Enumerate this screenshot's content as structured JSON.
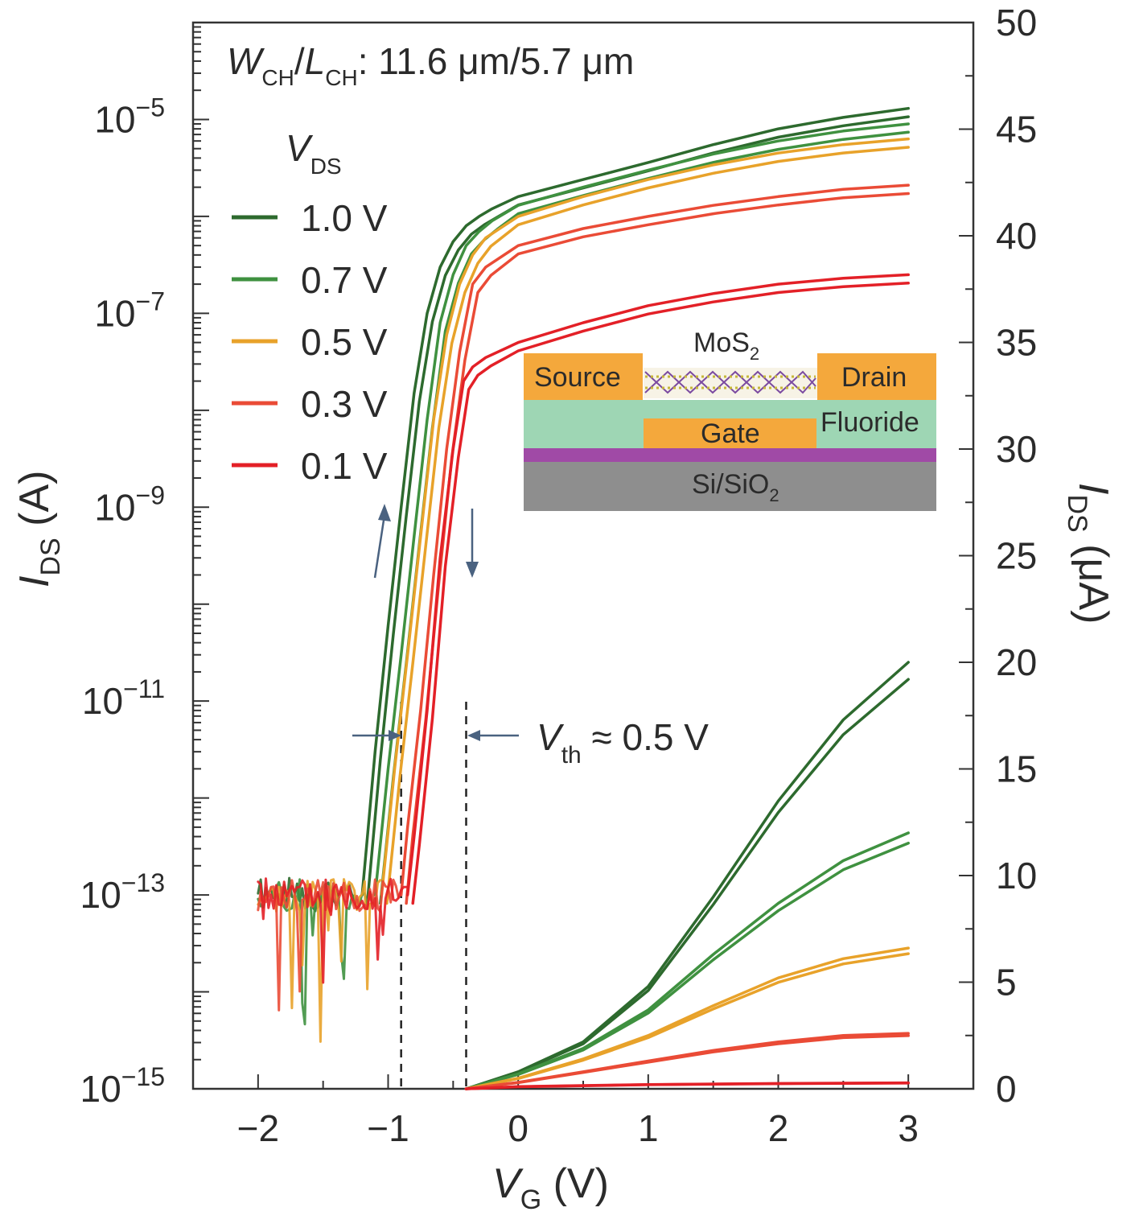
{
  "chart_data": {
    "type": "line",
    "annotation_top": {
      "w": "W",
      "w_sub": "CH",
      "slash": "/",
      "l": "L",
      "l_sub": "CH",
      "rest": ": 11.6 μm/5.7 μm"
    },
    "legend": {
      "title": "V",
      "title_sub": "DS",
      "position": "upper-left"
    },
    "x_axis": {
      "label": "V",
      "label_sub": "G",
      "label_unit": " (V)",
      "range": [
        -2.5,
        3.5
      ],
      "ticks": [
        -2,
        -1,
        0,
        1,
        2,
        3
      ],
      "tick_labels": [
        "−2",
        "−1",
        "0",
        "1",
        "2",
        "3"
      ]
    },
    "y_left": {
      "label": "I",
      "label_sub": "DS",
      "label_unit": " (A)",
      "scale": "log",
      "range": [
        1e-15,
        0.0001
      ],
      "tick_base": "10",
      "tick_exponents": [
        "−15",
        "−13",
        "−11",
        "−9",
        "−7",
        "−5"
      ],
      "tick_values": [
        -15,
        -13,
        -11,
        -9,
        -7,
        -5
      ]
    },
    "y_right": {
      "label": "I",
      "label_sub": "DS",
      "label_unit": " (μA)",
      "scale": "linear",
      "range": [
        0,
        50
      ],
      "ticks": [
        0,
        5,
        10,
        15,
        20,
        25,
        30,
        35,
        40,
        45,
        50
      ],
      "tick_labels": [
        "0",
        "5",
        "10",
        "15",
        "20",
        "25",
        "30",
        "35",
        "40",
        "45",
        "50"
      ]
    },
    "series": [
      {
        "name": "1.0 V",
        "color": "#2d6a2e",
        "log_x": [
          -1.2,
          -1.1,
          -1.0,
          -0.9,
          -0.8,
          -0.7,
          -0.6,
          -0.5,
          -0.4,
          -0.3,
          -0.2,
          0.0,
          0.5,
          1.0,
          1.5,
          2.0,
          2.5,
          3.0
        ],
        "log_y": [
          1e-13,
          3e-12,
          6e-11,
          1e-09,
          1.5e-08,
          1e-07,
          3e-07,
          5.5e-07,
          8e-07,
          1e-06,
          1.2e-06,
          1.6e-06,
          2.4e-06,
          3.6e-06,
          5.5e-06,
          8e-06,
          1.05e-05,
          1.3e-05
        ],
        "lin_x": [
          -0.4,
          0.0,
          0.5,
          1.0,
          1.5,
          2.0,
          2.5,
          3.0
        ],
        "lin_y": [
          0,
          0.8,
          2.2,
          4.8,
          9.0,
          13.5,
          17.3,
          20.0
        ]
      },
      {
        "name": "0.7 V",
        "color": "#3f9140",
        "log_x": [
          -1.1,
          -1.0,
          -0.9,
          -0.8,
          -0.7,
          -0.6,
          -0.5,
          -0.4,
          -0.3,
          -0.2,
          0.0,
          0.5,
          1.0,
          1.5,
          2.0,
          2.5,
          3.0
        ],
        "log_y": [
          1e-13,
          2e-12,
          3e-11,
          5e-10,
          8e-09,
          8e-08,
          2.5e-07,
          5e-07,
          7e-07,
          9e-07,
          1.3e-06,
          2e-06,
          3e-06,
          4.4e-06,
          6e-06,
          7.6e-06,
          9e-06
        ],
        "lin_x": [
          -0.4,
          0.0,
          0.5,
          1.0,
          1.5,
          2.0,
          2.5,
          3.0
        ],
        "lin_y": [
          0,
          0.7,
          1.9,
          3.7,
          6.3,
          8.7,
          10.7,
          12.0
        ]
      },
      {
        "name": "0.5 V",
        "color": "#e8a22a",
        "log_x": [
          -1.05,
          -0.95,
          -0.85,
          -0.75,
          -0.65,
          -0.55,
          -0.45,
          -0.35,
          -0.25,
          0.0,
          0.5,
          1.0,
          1.5,
          2.0,
          2.5,
          3.0
        ],
        "log_y": [
          1e-13,
          2e-12,
          3e-11,
          5e-10,
          8e-09,
          6e-08,
          2e-07,
          4e-07,
          6e-07,
          1e-06,
          1.6e-06,
          2.4e-06,
          3.4e-06,
          4.5e-06,
          5.5e-06,
          6.3e-06
        ],
        "lin_x": [
          -0.4,
          0.0,
          0.5,
          1.0,
          1.5,
          2.0,
          2.5,
          3.0
        ],
        "lin_y": [
          0,
          0.5,
          1.4,
          2.5,
          3.9,
          5.2,
          6.1,
          6.6
        ]
      },
      {
        "name": "0.3 V",
        "color": "#ea4b36",
        "log_x": [
          -0.9,
          -0.85,
          -0.75,
          -0.65,
          -0.55,
          -0.45,
          -0.35,
          -0.25,
          0.0,
          0.5,
          1.0,
          1.5,
          2.0,
          2.5,
          3.0
        ],
        "log_y": [
          1e-13,
          5e-13,
          8e-12,
          2e-10,
          4e-09,
          4e-08,
          2e-07,
          3e-07,
          5e-07,
          7.5e-07,
          1e-06,
          1.3e-06,
          1.6e-06,
          1.9e-06,
          2.1e-06
        ],
        "lin_x": [
          -0.4,
          0.0,
          0.5,
          1.0,
          1.5,
          2.0,
          2.5,
          3.0
        ],
        "lin_y": [
          0,
          0.3,
          0.8,
          1.3,
          1.8,
          2.2,
          2.5,
          2.6
        ]
      },
      {
        "name": "0.1 V",
        "color": "#e32027",
        "log_x": [
          -0.85,
          -0.8,
          -0.7,
          -0.6,
          -0.5,
          -0.42,
          -0.35,
          -0.25,
          0.0,
          0.5,
          1.0,
          1.5,
          2.0,
          2.5,
          3.0
        ],
        "log_y": [
          1e-13,
          4e-13,
          8e-12,
          3e-10,
          4e-09,
          2e-08,
          2.8e-08,
          3.5e-08,
          5e-08,
          8e-08,
          1.2e-07,
          1.6e-07,
          2e-07,
          2.3e-07,
          2.5e-07
        ],
        "lin_x": [
          -0.4,
          0.0,
          1.0,
          2.0,
          3.0
        ],
        "lin_y": [
          0,
          0.1,
          0.2,
          0.25,
          0.28
        ]
      }
    ],
    "vth_annotation": {
      "v": "V",
      "sub": "th",
      "rest": " ≈ 0.5 V"
    },
    "dashed_lines_x": [
      -0.9,
      -0.4
    ],
    "inset": {
      "channel_label": "MoS",
      "channel_sub": "2",
      "source": "Source",
      "drain": "Drain",
      "gate": "Gate",
      "dielectric": "Fluoride",
      "substrate": "Si/SiO",
      "substrate_sub": "2",
      "colors": {
        "electrode": "#f4a83c",
        "dielectric": "#9ed6b4",
        "interlayer": "#a04aa6",
        "substrate": "#8e8e8e"
      }
    }
  }
}
